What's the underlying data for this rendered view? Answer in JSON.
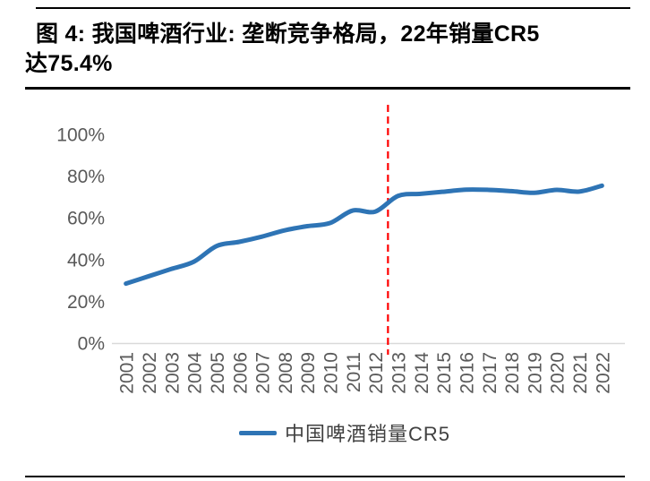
{
  "figure": {
    "title_line1": "图 4: 我国啤酒行业: 垄断竞争格局，22年销量CR5",
    "title_line2": "达75.4%"
  },
  "legend": {
    "label": "中国啤酒销量CR5"
  },
  "colors": {
    "line": "#2E74B5",
    "vline": "#FF0000",
    "axis_text": "#595959",
    "axis_line": "#D9D9D9",
    "rule": "#000000",
    "background": "#FFFFFF"
  },
  "chart_data": {
    "type": "line",
    "title": "我国啤酒行业：垄断竞争格局，22年销量CR5达75.4%",
    "categories": [
      "2001",
      "2002",
      "2003",
      "2004",
      "2005",
      "2006",
      "2007",
      "2008",
      "2009",
      "2010",
      "2011",
      "2012",
      "2013",
      "2014",
      "2015",
      "2016",
      "2017",
      "2018",
      "2019",
      "2020",
      "2021",
      "2022"
    ],
    "series": [
      {
        "name": "中国啤酒销量CR5",
        "values": [
          28.5,
          32.0,
          35.5,
          39.0,
          46.5,
          48.5,
          51.0,
          54.0,
          56.0,
          57.5,
          63.5,
          63.0,
          70.5,
          71.5,
          72.5,
          73.5,
          73.4,
          72.8,
          72.0,
          73.4,
          72.6,
          75.4
        ]
      }
    ],
    "xlabel": "",
    "ylabel": "",
    "ylim": [
      0,
      100
    ],
    "yticks": [
      0,
      20,
      40,
      60,
      80,
      100
    ],
    "ytick_format": "percent",
    "xtick_rotation": 90,
    "grid": false,
    "legend_position": "bottom",
    "annotations": [
      {
        "type": "vline",
        "between": [
          "2012",
          "2013"
        ],
        "x_index": 11.56,
        "style": "dashed",
        "color": "#FF0000"
      }
    ]
  }
}
